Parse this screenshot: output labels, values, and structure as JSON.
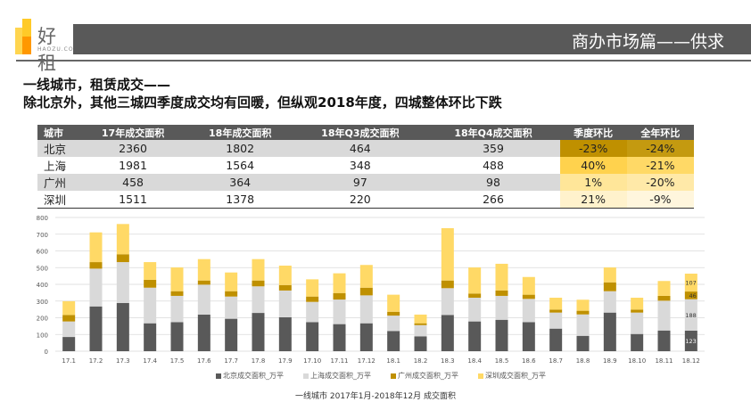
{
  "logo": {
    "text": "好租",
    "sub": "HAOZU.COM"
  },
  "header": {
    "title": "商办市场篇——供求"
  },
  "headline": {
    "line1": "一线城市，租赁成交——",
    "line2": "除北京外，其他三城四季度成交均有回暖，但纵观2018年度，四城整体环比下跌"
  },
  "table": {
    "columns": [
      "城市",
      "17年成交面积",
      "18年成交面积",
      "18年Q3成交面积",
      "18年Q4成交面积",
      "季度环比",
      "全年环比"
    ],
    "rows": [
      {
        "cells": [
          "北京",
          "2360",
          "1802",
          "464",
          "359",
          "-23%",
          "-24%"
        ],
        "q_color": "#bf9000",
        "y_color": "#c49a10"
      },
      {
        "cells": [
          "上海",
          "1981",
          "1564",
          "348",
          "488",
          "40%",
          "-21%"
        ],
        "q_color": "#ffd24d",
        "y_color": "#ffd966"
      },
      {
        "cells": [
          "广州",
          "458",
          "364",
          "97",
          "98",
          "1%",
          "-20%"
        ],
        "q_color": "#ffe699",
        "y_color": "#ffe9a8"
      },
      {
        "cells": [
          "深圳",
          "1511",
          "1378",
          "220",
          "266",
          "21%",
          "-9%"
        ],
        "q_color": "#fff2cc",
        "y_color": "#fff6dd"
      }
    ]
  },
  "chart_data": {
    "type": "bar",
    "stacked": true,
    "categories": [
      "17.1",
      "17.2",
      "17.3",
      "17.4",
      "17.5",
      "17.6",
      "17.7",
      "17.8",
      "17.9",
      "17.10",
      "17.11",
      "17.12",
      "18.1",
      "18.2",
      "18.3",
      "18.4",
      "18.5",
      "18.6",
      "18.7",
      "18.8",
      "18.9",
      "18.10",
      "18.11",
      "18.12"
    ],
    "ylim": [
      0,
      800
    ],
    "yticks": [
      "0",
      "100",
      "200",
      "300",
      "400",
      "500",
      "600",
      "700",
      "800"
    ],
    "grid": true,
    "legend_position": "bottom",
    "series": [
      {
        "name": "北京成交面积_万平",
        "color": "#595959",
        "values": [
          85,
          268,
          288,
          167,
          174,
          219,
          194,
          229,
          203,
          174,
          162,
          167,
          121,
          89,
          217,
          178,
          188,
          174,
          135,
          92,
          231,
          103,
          124,
          123
        ]
      },
      {
        "name": "上海成交面积_万平",
        "color": "#d9d9d9",
        "values": [
          93,
          226,
          245,
          213,
          157,
          179,
          133,
          159,
          160,
          121,
          147,
          167,
          92,
          67,
          160,
          142,
          143,
          139,
          96,
          128,
          128,
          128,
          178,
          188
        ]
      },
      {
        "name": "广州成交面积_万平",
        "color": "#bf9000",
        "values": [
          39,
          39,
          47,
          47,
          28,
          25,
          32,
          35,
          33,
          32,
          39,
          46,
          23,
          11,
          46,
          25,
          32,
          25,
          18,
          22,
          53,
          18,
          29,
          46
        ]
      },
      {
        "name": "深圳成交面积_万平",
        "color": "#ffd966",
        "values": [
          82,
          178,
          181,
          106,
          142,
          128,
          112,
          128,
          116,
          103,
          118,
          136,
          102,
          52,
          313,
          156,
          160,
          106,
          71,
          66,
          89,
          71,
          89,
          107
        ]
      }
    ],
    "data_labels": {
      "category": "18.12",
      "values": [
        "123",
        "188",
        "46",
        "107"
      ]
    },
    "caption": "一线城市 2017年1月-2018年12月 成交面积"
  }
}
